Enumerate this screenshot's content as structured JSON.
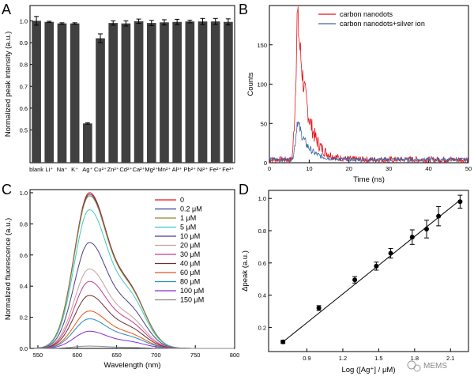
{
  "panel_labels": {
    "a": "A",
    "b": "B",
    "c": "C",
    "d": "D"
  },
  "watermark": "MEMS",
  "chart_data": [
    {
      "panel": "A",
      "type": "bar",
      "ylabel": "Normalized peak intensity (a.u.)",
      "xlabel": "",
      "ylim": [
        0.35,
        1.07
      ],
      "yticks": [
        "0.5",
        "0.6",
        "0.7",
        "0.8",
        "0.9",
        "1.0"
      ],
      "categories": [
        "blank",
        "Li⁺",
        "Na⁺",
        "K⁺",
        "Ag⁺",
        "Cu²⁺",
        "Zn²⁺",
        "Cd²⁺",
        "Ca²⁺",
        "Mg²⁺",
        "Mn²⁺",
        "Al³⁺",
        "Pb²⁺",
        "Ni²⁺",
        "Fe²⁺",
        "Fe³⁺"
      ],
      "values": [
        1.0,
        0.995,
        0.988,
        0.988,
        0.53,
        0.92,
        0.99,
        0.988,
        0.998,
        0.99,
        0.993,
        0.995,
        0.997,
        0.997,
        0.997,
        0.995
      ],
      "errors": [
        0.02,
        0.003,
        0.003,
        0.003,
        0.003,
        0.02,
        0.01,
        0.012,
        0.01,
        0.012,
        0.012,
        0.012,
        0.006,
        0.014,
        0.014,
        0.014
      ],
      "bar_color": "#404040"
    },
    {
      "panel": "B",
      "type": "line",
      "xlabel": "Time (ns)",
      "ylabel": "Counts",
      "xlim": [
        0,
        50
      ],
      "ylim": [
        0,
        200
      ],
      "xticks": [
        "0",
        "10",
        "20",
        "30",
        "40",
        "50"
      ],
      "yticks": [
        "0",
        "50",
        "100",
        "150"
      ],
      "series": [
        {
          "name": "carbon nanodots",
          "color": "#e8141b",
          "peak_x": 7.0,
          "peak": 192,
          "baseline": 4
        },
        {
          "name": "carbon nanodots+silver ion",
          "color": "#3a6aa8",
          "peak_x": 7.0,
          "peak": 55,
          "baseline": 4
        }
      ]
    },
    {
      "panel": "C",
      "type": "line",
      "xlabel": "Wavelength (nm)",
      "ylabel": "Normalized fluorescence (a.u.)",
      "xlim": [
        540,
        800
      ],
      "ylim": [
        0,
        1.02
      ],
      "xticks": [
        "550",
        "600",
        "650",
        "700",
        "750",
        "800"
      ],
      "yticks": [
        "0.0",
        "0.2",
        "0.4",
        "0.6",
        "0.8",
        "1.0"
      ],
      "peak_x": 615,
      "series": [
        {
          "name": "0",
          "peak": 1.0,
          "color": "#e8141b"
        },
        {
          "name": "0.2 μM",
          "peak": 0.99,
          "color": "#2e3f8f"
        },
        {
          "name": "1 μM",
          "peak": 0.98,
          "color": "#8a8a2a"
        },
        {
          "name": "5 μM",
          "peak": 0.89,
          "color": "#3fc9c4"
        },
        {
          "name": "10 μM",
          "peak": 0.68,
          "color": "#4b3f86"
        },
        {
          "name": "20 μM",
          "peak": 0.51,
          "color": "#c7a0a0"
        },
        {
          "name": "30 μM",
          "peak": 0.43,
          "color": "#c63a8a"
        },
        {
          "name": "40 μM",
          "peak": 0.34,
          "color": "#6b2f2f"
        },
        {
          "name": "60 μM",
          "peak": 0.24,
          "color": "#e8551b"
        },
        {
          "name": "80 μM",
          "peak": 0.19,
          "color": "#2a8ab8"
        },
        {
          "name": "100 μM",
          "peak": 0.11,
          "color": "#8a2ad6"
        },
        {
          "name": "150 μM",
          "peak": 0.015,
          "color": "#8a8a8a"
        }
      ]
    },
    {
      "panel": "D",
      "type": "scatter",
      "xlabel": "Log ([Ag⁺] / μM)",
      "ylabel": "Δpeak (a.u.)",
      "xlim": [
        0.58,
        2.25
      ],
      "ylim": [
        0.05,
        1.05
      ],
      "xticks": [
        "0.9",
        "1.2",
        "1.5",
        "1.8",
        "2.1"
      ],
      "yticks": [
        "0.2",
        "0.4",
        "0.6",
        "0.8",
        "1.0"
      ],
      "points": [
        {
          "x": 0.7,
          "y": 0.11,
          "err": 0.01
        },
        {
          "x": 1.0,
          "y": 0.32,
          "err": 0.015
        },
        {
          "x": 1.3,
          "y": 0.495,
          "err": 0.02
        },
        {
          "x": 1.48,
          "y": 0.58,
          "err": 0.025
        },
        {
          "x": 1.6,
          "y": 0.66,
          "err": 0.03
        },
        {
          "x": 1.78,
          "y": 0.76,
          "err": 0.045
        },
        {
          "x": 1.9,
          "y": 0.81,
          "err": 0.055
        },
        {
          "x": 2.0,
          "y": 0.89,
          "err": 0.06
        },
        {
          "x": 2.18,
          "y": 0.98,
          "err": 0.04
        }
      ],
      "fit": {
        "x": [
          0.7,
          2.18
        ],
        "y": [
          0.11,
          0.99
        ]
      }
    }
  ]
}
